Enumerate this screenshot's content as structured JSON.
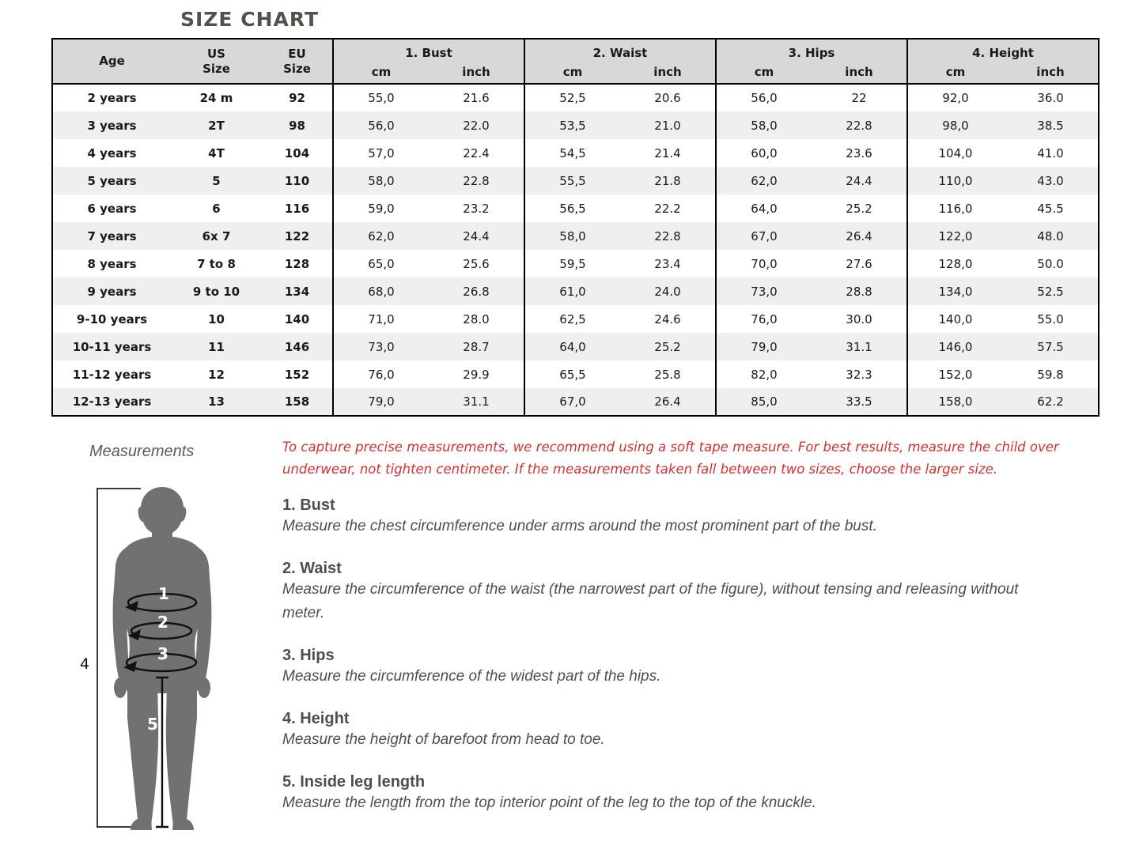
{
  "title": "SIZE CHART",
  "colors": {
    "title": "#57504a",
    "table_header_bg": "#d8d8d8",
    "row_stripe_bg": "#efefef",
    "table_border": "#000000",
    "note_red": "#d32f2f",
    "body_text_gray": "#4e4e4e",
    "silhouette_gray": "#717171"
  },
  "table": {
    "headers": {
      "age": "Age",
      "us": "US\nSize",
      "eu": "EU\nSize",
      "groups": [
        "1. Bust",
        "2. Waist",
        "3. Hips",
        "4. Height"
      ],
      "unit_cm": "cm",
      "unit_inch": "inch"
    },
    "rows": [
      [
        "2 years",
        "24 m",
        "92",
        "55,0",
        "21.6",
        "52,5",
        "20.6",
        "56,0",
        "22",
        "92,0",
        "36.0"
      ],
      [
        "3 years",
        "2T",
        "98",
        "56,0",
        "22.0",
        "53,5",
        "21.0",
        "58,0",
        "22.8",
        "98,0",
        "38.5"
      ],
      [
        "4 years",
        "4T",
        "104",
        "57,0",
        "22.4",
        "54,5",
        "21.4",
        "60,0",
        "23.6",
        "104,0",
        "41.0"
      ],
      [
        "5 years",
        "5",
        "110",
        "58,0",
        "22.8",
        "55,5",
        "21.8",
        "62,0",
        "24.4",
        "110,0",
        "43.0"
      ],
      [
        "6 years",
        "6",
        "116",
        "59,0",
        "23.2",
        "56,5",
        "22.2",
        "64,0",
        "25.2",
        "116,0",
        "45.5"
      ],
      [
        "7 years",
        "6x 7",
        "122",
        "62,0",
        "24.4",
        "58,0",
        "22.8",
        "67,0",
        "26.4",
        "122,0",
        "48.0"
      ],
      [
        "8 years",
        "7 to 8",
        "128",
        "65,0",
        "25.6",
        "59,5",
        "23.4",
        "70,0",
        "27.6",
        "128,0",
        "50.0"
      ],
      [
        "9 years",
        "9 to 10",
        "134",
        "68,0",
        "26.8",
        "61,0",
        "24.0",
        "73,0",
        "28.8",
        "134,0",
        "52.5"
      ],
      [
        "9-10 years",
        "10",
        "140",
        "71,0",
        "28.0",
        "62,5",
        "24.6",
        "76,0",
        "30.0",
        "140,0",
        "55.0"
      ],
      [
        "10-11 years",
        "11",
        "146",
        "73,0",
        "28.7",
        "64,0",
        "25.2",
        "79,0",
        "31.1",
        "146,0",
        "57.5"
      ],
      [
        "11-12 years",
        "12",
        "152",
        "76,0",
        "29.9",
        "65,5",
        "25.8",
        "82,0",
        "32.3",
        "152,0",
        "59.8"
      ],
      [
        "12-13 years",
        "13",
        "158",
        "79,0",
        "31.1",
        "67,0",
        "26.4",
        "85,0",
        "33.5",
        "158,0",
        "62.2"
      ]
    ]
  },
  "measurements": {
    "label": "Measurements",
    "note": "To capture precise measurements, we recommend using a soft tape measure. For best results, measure the child over underwear, not tighten centimeter. If the measurements taken fall between two sizes, choose the larger size.",
    "sections": [
      {
        "title": "1. Bust",
        "desc": "Measure the chest circumference under arms around the most prominent part of the bust."
      },
      {
        "title": "2. Waist",
        "desc": "Measure the circumference of the waist (the narrowest part of the figure), without tensing and releasing without meter."
      },
      {
        "title": "3. Hips",
        "desc": "Measure the circumference of the widest part of the hips."
      },
      {
        "title": "4. Height",
        "desc": "Measure the height of barefoot from head to toe."
      },
      {
        "title": "5. Inside leg length",
        "desc": "Measure the length from the top interior point of the leg to the top of the knuckle."
      }
    ],
    "figure_labels": [
      "1",
      "2",
      "3",
      "4",
      "5"
    ]
  }
}
